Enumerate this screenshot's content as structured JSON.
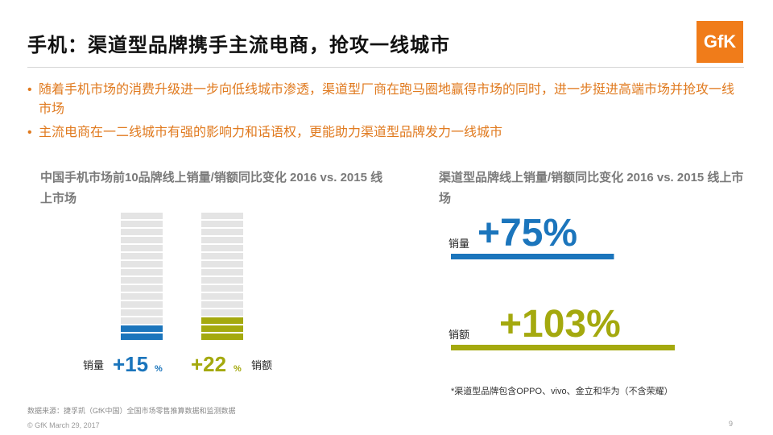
{
  "slide": {
    "title": "手机：渠道型品牌携手主流电商，抢攻一线城市",
    "logo_text": "GfK",
    "bullets": [
      "随着手机市场的消费升级进一步向低线城市渗透，渠道型厂商在跑马圈地赢得市场的同时，进一步挺进高端市场并抢攻一线市场",
      "主流电商在一二线城市有强的影响力和话语权，更能助力渠道型品牌发力一线城市"
    ],
    "source": "数据来源：捷孚凯（GfK中国）全国市场零售推算数据和监测数据",
    "footer": "© GfK March 29, 2017",
    "page_number": "9",
    "note": "*渠道型品牌包含OPPO、vivo、金立和华为（不含荣耀）"
  },
  "colors": {
    "accent_orange": "#f07c1a",
    "bullet_text": "#e07a1f",
    "sales_volume": "#1b75bc",
    "sales_value": "#a4a90e",
    "bar_empty": "#e4e4e4"
  },
  "chart_data": [
    {
      "type": "bar",
      "title": "中国手机市场前10品牌线上销量/销额同比变化  2016 vs. 2015 线上市场",
      "categories": [
        "销量",
        "销额"
      ],
      "values": [
        15,
        22
      ],
      "value_labels": [
        "+15",
        "+22"
      ],
      "unit": "%",
      "ylim": [
        0,
        100
      ],
      "segments": 16,
      "filled_segments": [
        2,
        3
      ]
    },
    {
      "type": "bar",
      "orientation": "horizontal",
      "title": "渠道型品牌线上销量/销额同比变化  2016 vs. 2015 线上市场",
      "categories": [
        "销量",
        "销额"
      ],
      "values": [
        75,
        103
      ],
      "value_labels": [
        "+75%",
        "+103%"
      ],
      "unit": "%"
    }
  ]
}
